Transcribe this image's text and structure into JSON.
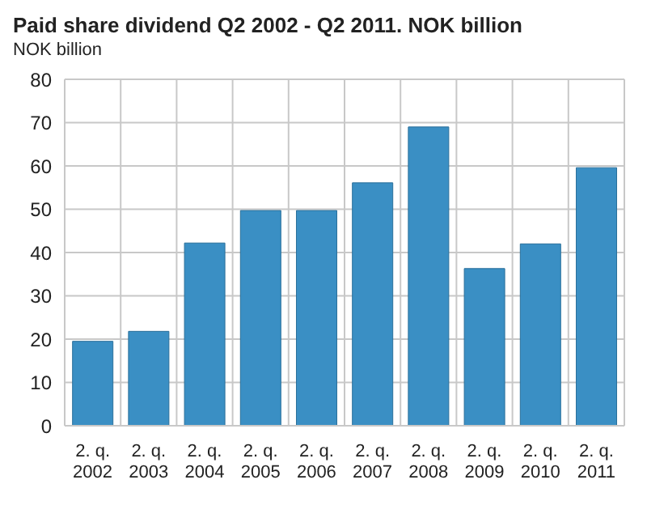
{
  "chart_data": {
    "type": "bar",
    "title": "Paid share dividend Q2 2002 - Q2 2011. NOK billion",
    "ylabel": "NOK billion",
    "categories": [
      "2. q.\n2002",
      "2. q.\n2003",
      "2. q.\n2004",
      "2. q.\n2005",
      "2. q.\n2006",
      "2. q.\n2007",
      "2. q.\n2008",
      "2. q.\n2009",
      "2. q.\n2010",
      "2. q.\n2011"
    ],
    "values": [
      19.5,
      21.8,
      42.2,
      49.7,
      49.7,
      56.1,
      69,
      36.3,
      42,
      59.6
    ],
    "color": "#3a8fc4",
    "ylim": [
      0,
      80
    ],
    "yticks": [
      0,
      10,
      20,
      30,
      40,
      50,
      60,
      70,
      80
    ],
    "grid": true
  }
}
